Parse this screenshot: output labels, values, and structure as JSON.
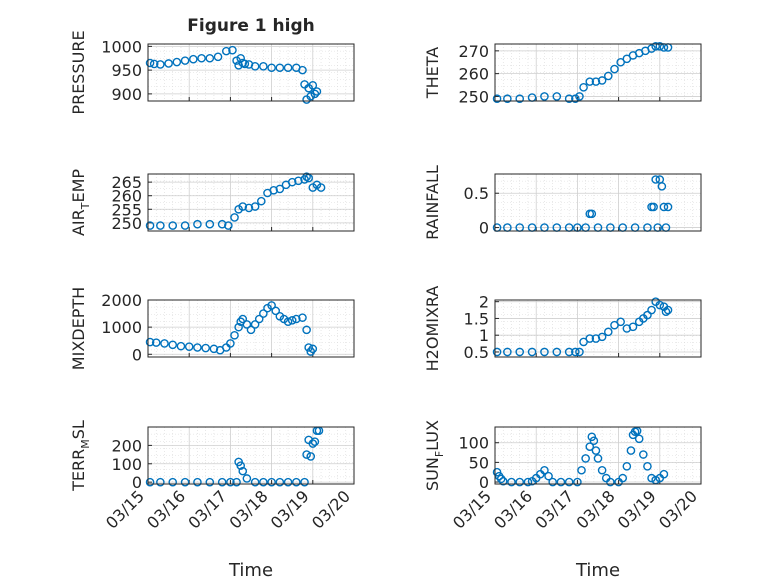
{
  "figure": {
    "title": "Figure 1 high",
    "marker_color": "#0072BD",
    "grid": "on (major + minor dotted)"
  },
  "chart_data": [
    {
      "type": "scatter",
      "title": "Figure 1 high",
      "ylabel": "PRESSURE",
      "ylim": [
        885,
        1005
      ],
      "yticks": [
        "900",
        "950",
        "1000"
      ],
      "xlim": [
        0,
        5
      ],
      "xticks": [],
      "x": [
        0.05,
        0.15,
        0.3,
        0.5,
        0.7,
        0.9,
        1.1,
        1.3,
        1.5,
        1.7,
        1.9,
        2.05,
        2.15,
        2.2,
        2.25,
        2.3,
        2.35,
        2.45,
        2.6,
        2.8,
        3.0,
        3.2,
        3.4,
        3.6,
        3.75,
        3.8,
        3.85,
        3.9,
        3.95,
        4.0,
        4.05,
        4.1
      ],
      "y": [
        965,
        963,
        962,
        964,
        967,
        970,
        973,
        975,
        975,
        978,
        990,
        992,
        970,
        960,
        975,
        965,
        963,
        962,
        958,
        958,
        955,
        955,
        955,
        955,
        950,
        920,
        888,
        912,
        895,
        918,
        900,
        905
      ]
    },
    {
      "type": "scatter",
      "ylabel": "THETA",
      "ylim": [
        248,
        273
      ],
      "yticks": [
        "250",
        "260",
        "270"
      ],
      "xlim": [
        0,
        5
      ],
      "xticks": [],
      "x": [
        0.05,
        0.3,
        0.6,
        0.9,
        1.2,
        1.5,
        1.8,
        1.95,
        2.05,
        2.15,
        2.3,
        2.45,
        2.6,
        2.75,
        2.9,
        3.05,
        3.2,
        3.35,
        3.5,
        3.65,
        3.8,
        3.9,
        4.0,
        4.1,
        4.2
      ],
      "y": [
        249,
        249,
        249,
        249.5,
        250,
        250,
        249,
        249,
        250,
        254,
        256.5,
        256.5,
        257,
        259,
        262,
        265,
        266.5,
        268,
        269,
        270,
        271,
        272,
        272,
        271.5,
        271.5
      ]
    },
    {
      "type": "scatter",
      "ylabel": "AIR",
      "ylabel_sub": "T",
      "ylabel_suffix": "EMP",
      "ylim": [
        247,
        268
      ],
      "yticks": [
        "250",
        "255",
        "260",
        "265"
      ],
      "xlim": [
        0,
        5
      ],
      "xticks": [],
      "x": [
        0.05,
        0.3,
        0.6,
        0.9,
        1.2,
        1.5,
        1.8,
        1.95,
        2.1,
        2.2,
        2.3,
        2.45,
        2.6,
        2.75,
        2.9,
        3.05,
        3.2,
        3.35,
        3.5,
        3.65,
        3.8,
        3.85,
        3.9,
        4.0,
        4.1,
        4.2
      ],
      "y": [
        249,
        249,
        249,
        249,
        249.5,
        249.5,
        249.5,
        249,
        252,
        255,
        256,
        255.5,
        256,
        258,
        261,
        262,
        262.5,
        264,
        265,
        265.5,
        266,
        267,
        266.5,
        263,
        264,
        263
      ]
    },
    {
      "type": "scatter",
      "ylabel": "RAINFALL",
      "ylim": [
        -0.05,
        0.78
      ],
      "yticks": [
        "0",
        "0.5"
      ],
      "xlim": [
        0,
        5
      ],
      "xticks": [],
      "x": [
        0.05,
        0.3,
        0.6,
        0.9,
        1.2,
        1.5,
        1.8,
        2.0,
        2.2,
        2.3,
        2.35,
        2.5,
        2.8,
        3.1,
        3.4,
        3.7,
        3.8,
        3.85,
        3.9,
        3.95,
        4.0,
        4.05,
        4.1,
        4.15,
        4.2
      ],
      "y": [
        0,
        0,
        0,
        0,
        0,
        0,
        0,
        0,
        0,
        0.2,
        0.2,
        0,
        0,
        0,
        0,
        0,
        0.3,
        0.3,
        0.7,
        0,
        0.7,
        0.6,
        0.3,
        0,
        0.3
      ]
    },
    {
      "type": "scatter",
      "ylabel": "MIXDEPTH",
      "ylim": [
        -100,
        2000
      ],
      "yticks": [
        "0",
        "1000",
        "2000"
      ],
      "xlim": [
        0,
        5
      ],
      "xticks": [],
      "x": [
        0.05,
        0.2,
        0.4,
        0.6,
        0.8,
        1.0,
        1.2,
        1.4,
        1.6,
        1.75,
        1.9,
        2.0,
        2.1,
        2.2,
        2.25,
        2.3,
        2.4,
        2.5,
        2.6,
        2.7,
        2.8,
        2.9,
        3.0,
        3.1,
        3.2,
        3.3,
        3.4,
        3.5,
        3.6,
        3.75,
        3.85,
        3.9,
        3.95,
        4.0
      ],
      "y": [
        450,
        430,
        400,
        350,
        300,
        280,
        250,
        230,
        200,
        150,
        250,
        400,
        700,
        1000,
        1200,
        1300,
        1100,
        900,
        1100,
        1300,
        1500,
        1700,
        1800,
        1600,
        1400,
        1300,
        1200,
        1250,
        1300,
        1350,
        900,
        250,
        100,
        200
      ]
    },
    {
      "type": "scatter",
      "ylabel": "H2OMIXRA",
      "ylim": [
        0.35,
        2.05
      ],
      "yticks": [
        "0.5",
        "1",
        "1.5",
        "2"
      ],
      "xlim": [
        0,
        5
      ],
      "xticks": [],
      "x": [
        0.05,
        0.3,
        0.6,
        0.9,
        1.2,
        1.5,
        1.8,
        1.95,
        2.05,
        2.15,
        2.3,
        2.45,
        2.6,
        2.75,
        2.9,
        3.05,
        3.2,
        3.35,
        3.5,
        3.6,
        3.7,
        3.8,
        3.9,
        4.0,
        4.1,
        4.15,
        4.2
      ],
      "y": [
        0.5,
        0.5,
        0.5,
        0.5,
        0.5,
        0.5,
        0.5,
        0.5,
        0.5,
        0.8,
        0.9,
        0.9,
        0.95,
        1.1,
        1.3,
        1.4,
        1.2,
        1.25,
        1.4,
        1.5,
        1.6,
        1.75,
        2.0,
        1.9,
        1.85,
        1.7,
        1.75
      ]
    },
    {
      "type": "scatter",
      "ylabel": "TERR",
      "ylabel_sub": "M",
      "ylabel_suffix": "SL",
      "ylim": [
        -10,
        300
      ],
      "yticks": [
        "0",
        "100",
        "200"
      ],
      "xlim": [
        0,
        5
      ],
      "xticks": [
        "03/15",
        "03/16",
        "03/17",
        "03/18",
        "03/19",
        "03/20"
      ],
      "xlabel": "Time",
      "x": [
        0.05,
        0.3,
        0.6,
        0.9,
        1.2,
        1.5,
        1.8,
        2.0,
        2.15,
        2.2,
        2.25,
        2.3,
        2.4,
        2.6,
        2.8,
        3.0,
        3.2,
        3.4,
        3.6,
        3.8,
        3.85,
        3.9,
        3.95,
        4.0,
        4.05,
        4.1,
        4.15
      ],
      "y": [
        0,
        0,
        0,
        0,
        0,
        0,
        0,
        0,
        0,
        110,
        90,
        60,
        20,
        0,
        0,
        0,
        0,
        0,
        0,
        0,
        150,
        230,
        140,
        210,
        220,
        280,
        280
      ]
    },
    {
      "type": "scatter",
      "ylabel": "SUN",
      "ylabel_sub": "F",
      "ylabel_suffix": "LUX",
      "ylim": [
        -5,
        140
      ],
      "yticks": [
        "0",
        "50",
        "100"
      ],
      "xlim": [
        0,
        5
      ],
      "xticks": [
        "03/15",
        "03/16",
        "03/17",
        "03/18",
        "03/19",
        "03/20"
      ],
      "xlabel": "Time",
      "x": [
        0.05,
        0.1,
        0.15,
        0.2,
        0.4,
        0.6,
        0.8,
        0.9,
        1.0,
        1.1,
        1.2,
        1.3,
        1.4,
        1.6,
        1.8,
        2.0,
        2.1,
        2.2,
        2.3,
        2.35,
        2.4,
        2.45,
        2.5,
        2.6,
        2.7,
        2.8,
        3.0,
        3.1,
        3.2,
        3.3,
        3.35,
        3.4,
        3.45,
        3.5,
        3.6,
        3.7,
        3.8,
        3.9,
        4.0,
        4.1
      ],
      "y": [
        25,
        15,
        8,
        2,
        0,
        0,
        0,
        2,
        10,
        20,
        30,
        15,
        0,
        0,
        0,
        0,
        30,
        60,
        90,
        115,
        105,
        80,
        60,
        30,
        10,
        0,
        0,
        10,
        40,
        80,
        120,
        128,
        130,
        110,
        70,
        40,
        10,
        5,
        10,
        20
      ]
    }
  ]
}
